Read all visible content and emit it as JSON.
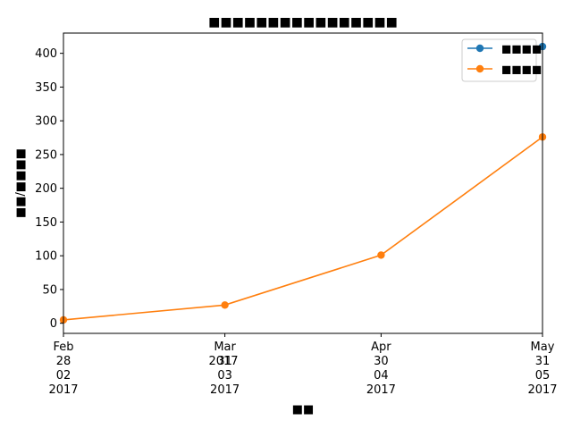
{
  "chart_data": {
    "type": "line",
    "title": "■■■■■■■■■■■■■■■■",
    "xlabel": "■■",
    "ylabel": "■■/■■■■",
    "x_dates": [
      "2017-02-28",
      "2017-03-31",
      "2017-04-30",
      "2017-05-31"
    ],
    "x_tick_labels": [
      [
        "Feb",
        "28",
        "02",
        "2017"
      ],
      [
        "Mar",
        "31",
        "03",
        "2017"
      ],
      [
        "Apr",
        "30",
        "04",
        "2017"
      ],
      [
        "May",
        "31",
        "05",
        "2017"
      ]
    ],
    "x_offset_label": "2017",
    "ylim": [
      -15,
      430
    ],
    "y_ticks": [
      0,
      50,
      100,
      150,
      200,
      250,
      300,
      350,
      400
    ],
    "grid": false,
    "legend_position": "top-right",
    "series": [
      {
        "name": "■■■■",
        "color": "#1f77b4",
        "marker": "circle",
        "values": [
          null,
          null,
          null,
          410
        ]
      },
      {
        "name": "■■■■",
        "color": "#ff7f0e",
        "marker": "circle",
        "values": [
          5,
          27,
          101,
          276
        ]
      }
    ]
  }
}
